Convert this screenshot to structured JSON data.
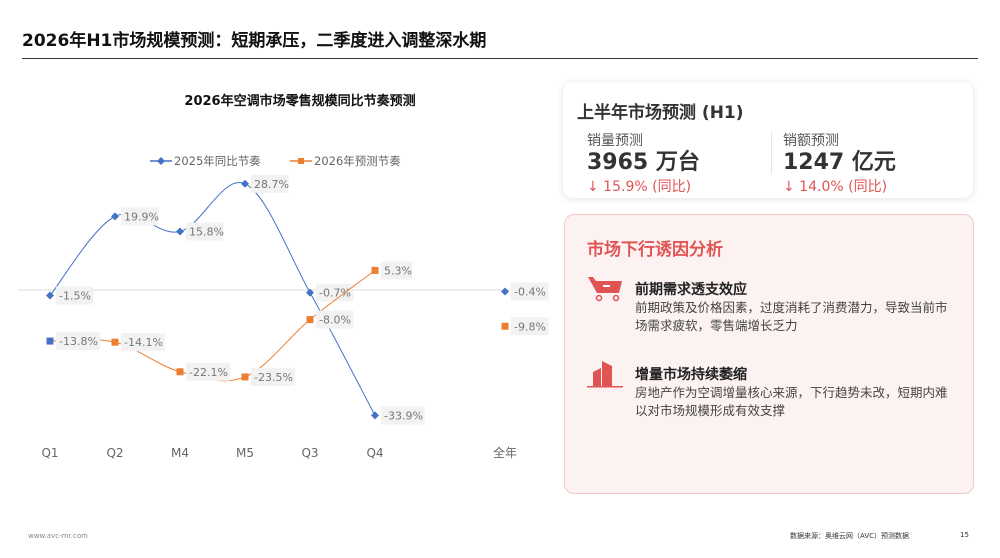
{
  "header": {
    "title": "2026年H1市场规模预测：短期承压，二季度进入调整深水期"
  },
  "chart_data": {
    "type": "line",
    "title": "2026年空调市场零售规模同比节奏预测",
    "categories": [
      "Q1",
      "Q2",
      "M4",
      "M5",
      "Q3",
      "Q4",
      "全年"
    ],
    "legend_position": "top",
    "grid": false,
    "series": [
      {
        "name": "2025年同比节奏",
        "color": "#4472c4",
        "marker": "diamond",
        "values": [
          -1.5,
          19.9,
          15.8,
          28.7,
          -0.7,
          -33.9,
          -0.4
        ],
        "labels": [
          "-1.5%",
          "19.9%",
          "15.8%",
          "28.7%",
          "-0.7%",
          "-33.9%",
          "-0.4%"
        ]
      },
      {
        "name": "2026年预测节奏",
        "color": "#ed7d31",
        "marker": "square",
        "values": [
          -13.8,
          -14.1,
          -22.1,
          -23.5,
          -8.0,
          5.3,
          -9.8
        ],
        "labels": [
          "-13.8%",
          "-14.1%",
          "-22.1%",
          "-23.5%",
          "-8.0%",
          "5.3%",
          "-9.8%"
        ]
      }
    ]
  },
  "forecast": {
    "title": "上半年市场预测 (H1)",
    "volume": {
      "label": "销量预测",
      "value": "3965 万台",
      "change": "↓ 15.9% (同比)"
    },
    "revenue": {
      "label": "销额预测",
      "value": "1247 亿元",
      "change": "↓ 14.0% (同比)"
    },
    "accent": "#e05454"
  },
  "analysis": {
    "title": "市场下行诱因分析",
    "items": [
      {
        "icon": "shopping-cart-icon",
        "heading": "前期需求透支效应",
        "desc": "前期政策及价格因素，过度消耗了消费潜力，导致当前市场需求疲软，零售端增长乏力"
      },
      {
        "icon": "building-icon",
        "heading": "增量市场持续萎缩",
        "desc": "房地产作为空调增量核心来源，下行趋势未改，短期内难以对市场规模形成有效支撑"
      }
    ]
  },
  "footer": {
    "website": "www.avc-mr.com",
    "source": "数据来源：奥维云网（AVC）预测数据",
    "page": "15"
  }
}
